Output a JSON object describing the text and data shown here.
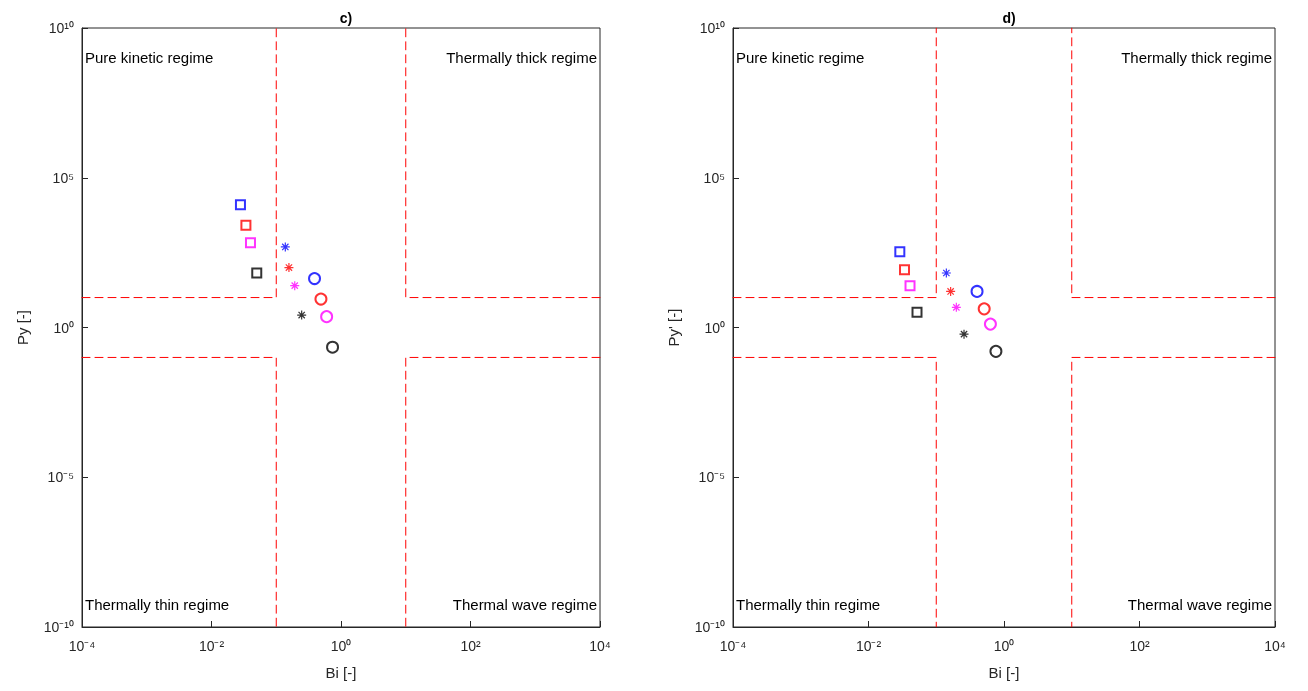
{
  "chart_data": [
    {
      "type": "scatter",
      "title": "c)",
      "xlabel": "Bi [-]",
      "ylabel": "Py [-]",
      "log": "xy",
      "xlim": [
        0.0001,
        10000
      ],
      "ylim": [
        1e-10,
        10000000000.0
      ],
      "xticks": [
        {
          "value": 0.0001,
          "label": "10⁻⁴"
        },
        {
          "value": 0.01,
          "label": "10⁻²"
        },
        {
          "value": 1,
          "label": "10⁰"
        },
        {
          "value": 100,
          "label": "10²"
        },
        {
          "value": 10000,
          "label": "10⁴"
        }
      ],
      "yticks": [
        {
          "value": 1e-10,
          "label": "10⁻¹⁰"
        },
        {
          "value": 1e-05,
          "label": "10⁻⁵"
        },
        {
          "value": 1,
          "label": "10⁰"
        },
        {
          "value": 100000,
          "label": "10⁵"
        },
        {
          "value": 10000000000.0,
          "label": "10¹⁰"
        }
      ],
      "annotations": [
        "Pure kinetic regime",
        "Thermally thick regime",
        "Thermally thin regime",
        "Thermal wave regime"
      ],
      "series": [
        {
          "type": "scatter",
          "marker": "square",
          "x": [
            0.028,
            0.034,
            0.04,
            0.05
          ],
          "values": [
            12600,
            2600,
            680,
            66
          ],
          "colors": [
            "#0000ff",
            "#ff0000",
            "#ff00ff",
            "#000000"
          ]
        },
        {
          "type": "scatter",
          "marker": "cross",
          "x": [
            0.138,
            0.157,
            0.193,
            0.247
          ],
          "values": [
            490,
            100,
            25,
            2.6
          ],
          "colors": [
            "#0000ff",
            "#ff0000",
            "#ff00ff",
            "#000000"
          ]
        },
        {
          "type": "scatter",
          "marker": "circle",
          "x": [
            0.39,
            0.49,
            0.6,
            0.74
          ],
          "values": [
            43,
            8.9,
            2.3,
            0.22
          ],
          "colors": [
            "#0000ff",
            "#ff0000",
            "#ff00ff",
            "#000000"
          ]
        },
        {
          "type": "line",
          "line_style": "dashed",
          "marker": "none",
          "color": "#ff0000",
          "x": [
            0.0001,
            0.1,
            0.1
          ],
          "values": [
            10,
            10,
            10000000000.0
          ]
        },
        {
          "type": "line",
          "line_style": "dashed",
          "marker": "none",
          "color": "#ff0000",
          "x": [
            10000,
            10,
            10
          ],
          "values": [
            10,
            10,
            10000000000.0
          ]
        },
        {
          "type": "line",
          "line_style": "dashed",
          "marker": "none",
          "color": "#ff0000",
          "x": [
            0.0001,
            0.1,
            0.1
          ],
          "values": [
            0.1,
            0.1,
            1e-10
          ]
        },
        {
          "type": "line",
          "line_style": "dashed",
          "marker": "none",
          "color": "#ff0000",
          "x": [
            10000,
            10,
            10
          ],
          "values": [
            0.1,
            0.1,
            1e-10
          ]
        }
      ]
    },
    {
      "type": "scatter",
      "title": "d)",
      "xlabel": "Bi [-]",
      "ylabel": "Py' [-]",
      "log": "xy",
      "xlim": [
        0.0001,
        10000
      ],
      "ylim": [
        1e-10,
        10000000000.0
      ],
      "xticks": [
        {
          "value": 0.0001,
          "label": "10⁻⁴"
        },
        {
          "value": 0.01,
          "label": "10⁻²"
        },
        {
          "value": 1,
          "label": "10⁰"
        },
        {
          "value": 100,
          "label": "10²"
        },
        {
          "value": 10000,
          "label": "10⁴"
        }
      ],
      "yticks": [
        {
          "value": 1e-10,
          "label": "10⁻¹⁰"
        },
        {
          "value": 1e-05,
          "label": "10⁻⁵"
        },
        {
          "value": 1,
          "label": "10⁰"
        },
        {
          "value": 100000,
          "label": "10⁵"
        },
        {
          "value": 10000000000.0,
          "label": "10¹⁰"
        }
      ],
      "annotations": [
        "Pure kinetic regime",
        "Thermally thick regime",
        "Thermally thin regime",
        "Thermal wave regime"
      ],
      "series": [
        {
          "type": "scatter",
          "marker": "square",
          "x": [
            0.029,
            0.034,
            0.041,
            0.052
          ],
          "values": [
            340,
            85,
            25,
            3.2
          ],
          "colors": [
            "#0000ff",
            "#ff0000",
            "#ff00ff",
            "#000000"
          ]
        },
        {
          "type": "scatter",
          "marker": "cross",
          "x": [
            0.141,
            0.163,
            0.198,
            0.257
          ],
          "values": [
            66,
            16,
            4.7,
            0.6
          ],
          "colors": [
            "#0000ff",
            "#ff0000",
            "#ff00ff",
            "#000000"
          ]
        },
        {
          "type": "scatter",
          "marker": "circle",
          "x": [
            0.4,
            0.51,
            0.63,
            0.76
          ],
          "values": [
            16,
            4.2,
            1.3,
            0.16
          ],
          "colors": [
            "#0000ff",
            "#ff0000",
            "#ff00ff",
            "#000000"
          ]
        },
        {
          "type": "line",
          "line_style": "dashed",
          "marker": "none",
          "color": "#ff0000",
          "x": [
            0.0001,
            0.1,
            0.1
          ],
          "values": [
            10,
            10,
            10000000000.0
          ]
        },
        {
          "type": "line",
          "line_style": "dashed",
          "marker": "none",
          "color": "#ff0000",
          "x": [
            10000,
            10,
            10
          ],
          "values": [
            10,
            10,
            10000000000.0
          ]
        },
        {
          "type": "line",
          "line_style": "dashed",
          "marker": "none",
          "color": "#ff0000",
          "x": [
            0.0001,
            0.1,
            0.1
          ],
          "values": [
            0.1,
            0.1,
            1e-10
          ]
        },
        {
          "type": "line",
          "line_style": "dashed",
          "marker": "none",
          "color": "#ff0000",
          "x": [
            10000,
            10,
            10
          ],
          "values": [
            0.1,
            0.1,
            1e-10
          ]
        }
      ]
    }
  ]
}
